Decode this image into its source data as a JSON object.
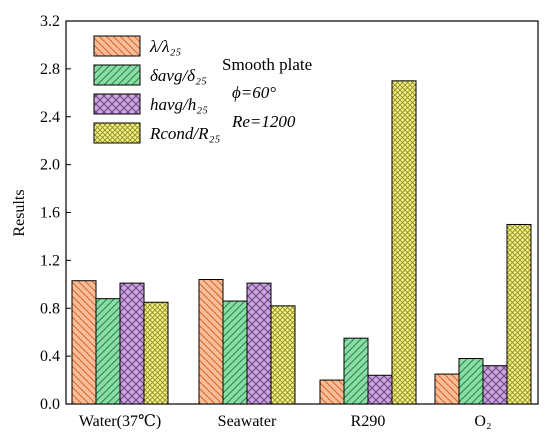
{
  "chart_data": {
    "type": "bar",
    "ylabel": "Results",
    "ylim": [
      0,
      3.2
    ],
    "yticks": [
      "0.0",
      "0.4",
      "0.8",
      "1.2",
      "1.6",
      "2.0",
      "2.4",
      "2.8",
      "3.2"
    ],
    "categories": [
      "Water(37℃)",
      "Seawater",
      "R290",
      "O₂"
    ],
    "series": [
      {
        "name": "λ/λ₂₅",
        "values": [
          1.03,
          1.04,
          0.2,
          0.25
        ],
        "color": "#f7bf99",
        "pattern": "diag-back"
      },
      {
        "name": "δavg/δ₂₅",
        "values": [
          0.88,
          0.86,
          0.55,
          0.38
        ],
        "color": "#8fdba8",
        "pattern": "diag-fwd"
      },
      {
        "name": "havg/h₂₅",
        "values": [
          1.01,
          1.01,
          0.24,
          0.32
        ],
        "color": "#c9a6d8",
        "pattern": "cross"
      },
      {
        "name": "Rcond/R₂₅",
        "values": [
          0.85,
          0.82,
          2.7,
          1.5
        ],
        "color": "#f1f08a",
        "pattern": "grid"
      }
    ],
    "annotations": [
      "Smooth plate",
      "ϕ=60°",
      "Re=1200"
    ],
    "legend_position": "top-left"
  }
}
